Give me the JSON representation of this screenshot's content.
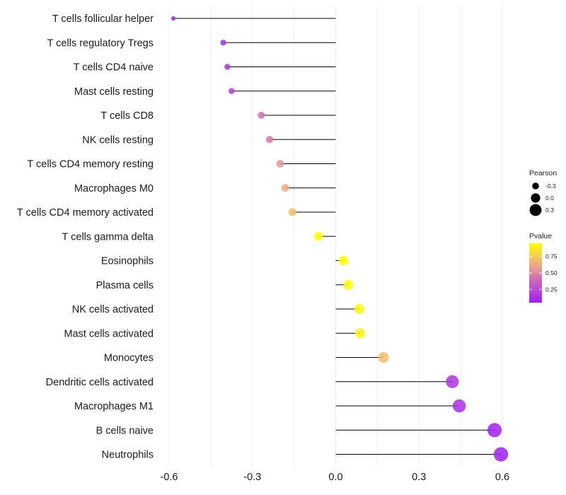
{
  "chart_data": {
    "type": "lollipop",
    "orientation": "horizontal",
    "categories": [
      "T cells follicular helper",
      "T cells regulatory  Tregs",
      "T cells CD4 naive",
      "Mast cells resting",
      "T cells CD8",
      "NK cells resting",
      "T cells CD4 memory resting",
      "Macrophages M0",
      "T cells CD4 memory activated",
      "T cells gamma delta",
      "Eosinophils",
      "Plasma cells",
      "NK cells activated",
      "Mast cells activated",
      "Monocytes",
      "Dendritic cells activated",
      "Macrophages M1",
      "B cells naive",
      "Neutrophils"
    ],
    "values": [
      -0.585,
      -0.405,
      -0.39,
      -0.375,
      -0.268,
      -0.238,
      -0.2,
      -0.182,
      -0.156,
      -0.062,
      0.028,
      0.045,
      0.085,
      0.088,
      0.172,
      0.42,
      0.445,
      0.572,
      0.595
    ],
    "pvalues": [
      0.05,
      0.12,
      0.15,
      0.2,
      0.4,
      0.45,
      0.55,
      0.62,
      0.7,
      0.95,
      0.98,
      0.96,
      0.92,
      0.9,
      0.7,
      0.15,
      0.12,
      0.05,
      0.04
    ],
    "xlim": [
      -0.6,
      0.6
    ],
    "xticks": [
      -0.6,
      -0.3,
      0.0,
      0.3,
      0.6
    ],
    "xtick_labels": [
      "-0.6",
      "-0.3",
      "0.0",
      "0.3",
      "0.6"
    ],
    "grid": true,
    "size_legend": {
      "title": "Pearson",
      "values": [
        -0.3,
        0.0,
        0.3
      ],
      "labels": [
        "-0.3",
        "0.0",
        "0.3"
      ]
    },
    "color_legend": {
      "title": "Pvalue",
      "range": [
        0.05,
        0.95
      ],
      "ticks": [
        0.25,
        0.5,
        0.75
      ],
      "tick_labels": [
        "0.25",
        "0.50",
        "0.75"
      ],
      "low_color": "#a020f0",
      "high_color": "#ffff00"
    },
    "segment_color": "#000000"
  }
}
